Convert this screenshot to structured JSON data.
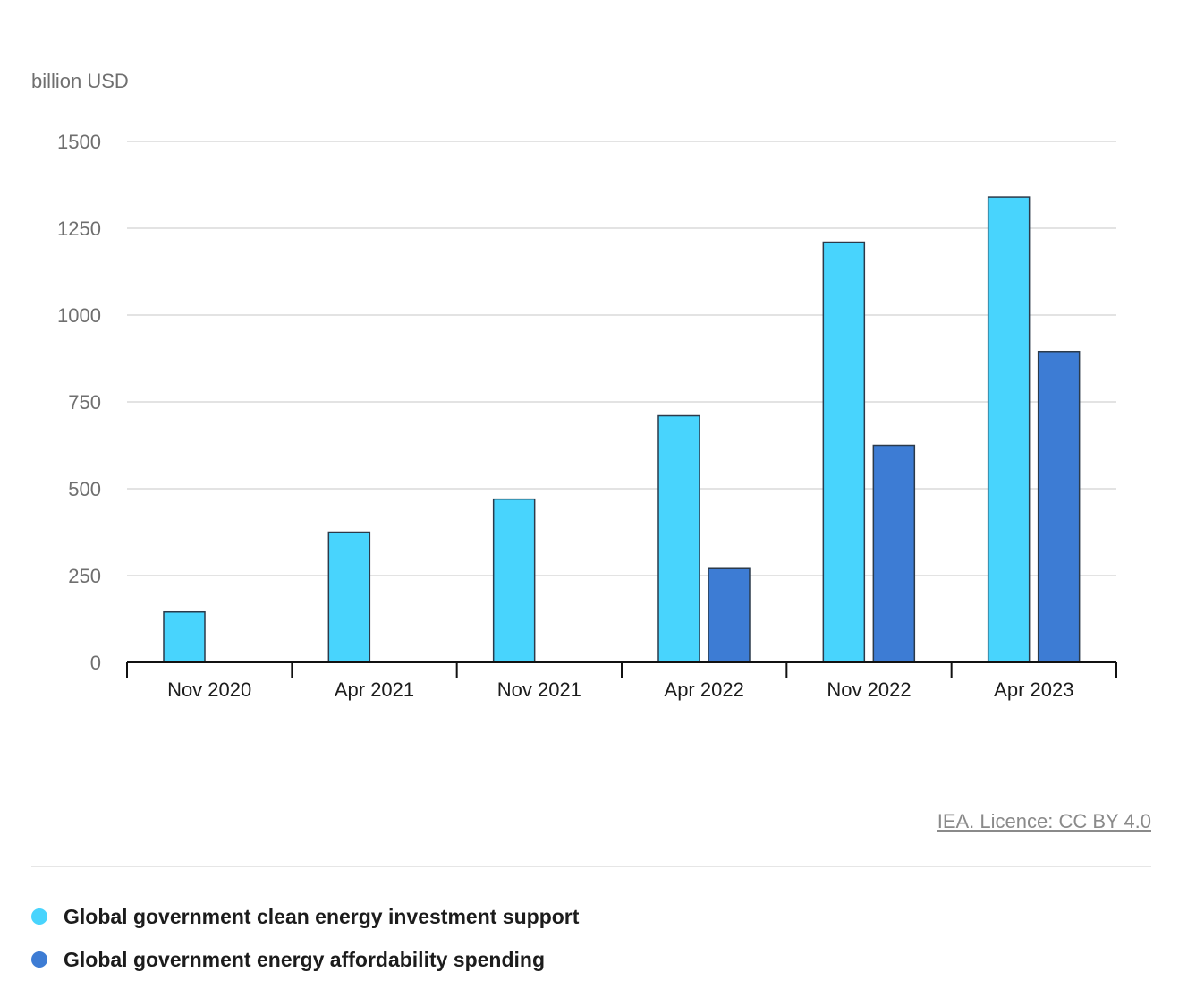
{
  "chart_data": {
    "type": "bar",
    "ylabel": "billion USD",
    "categories": [
      "Nov 2020",
      "Apr 2021",
      "Nov 2021",
      "Apr 2022",
      "Nov 2022",
      "Apr 2023"
    ],
    "ylim": [
      0,
      1500
    ],
    "yticks": [
      0,
      250,
      500,
      750,
      1000,
      1250,
      1500
    ],
    "grid": true,
    "legend_position": "bottom",
    "series": [
      {
        "name": "Global government clean energy investment support",
        "color": "#48d4fd",
        "values": [
          145,
          375,
          470,
          710,
          1210,
          1340
        ]
      },
      {
        "name": "Global government energy affordability spending",
        "color": "#3d7cd4",
        "values": [
          null,
          null,
          null,
          270,
          625,
          895
        ]
      }
    ]
  },
  "source": "IEA. Licence: CC BY 4.0"
}
